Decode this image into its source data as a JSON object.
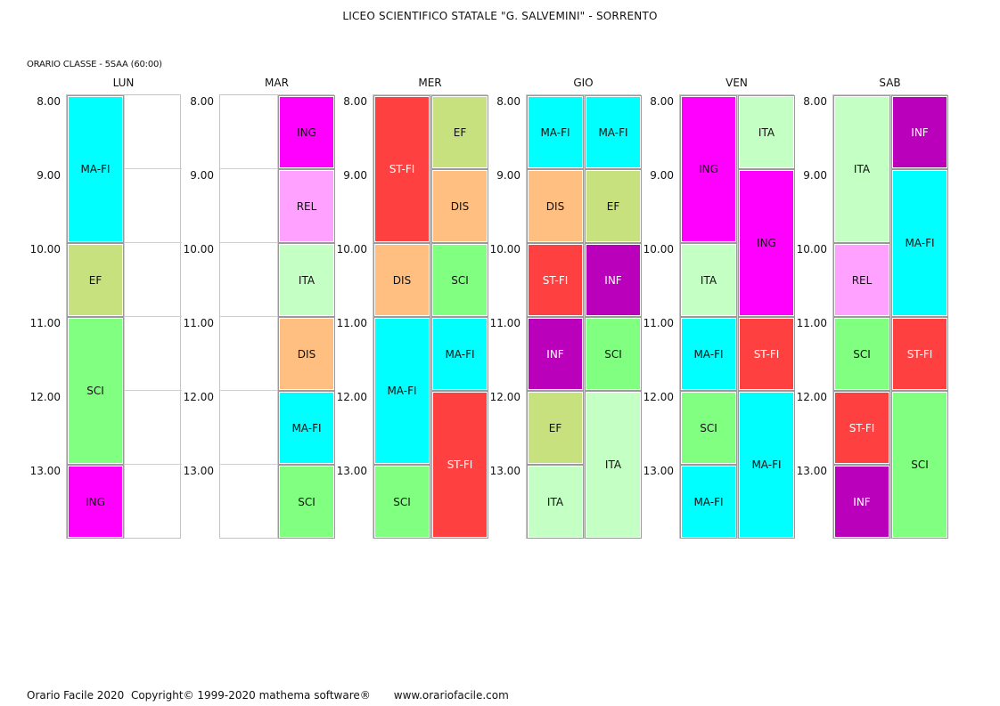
{
  "header": {
    "school": "LICEO SCIENTIFICO STATALE \"G. SALVEMINI\" - SORRENTO",
    "class_label": "ORARIO CLASSE  -  5SAA  (60:00)"
  },
  "times": [
    "8.00",
    "9.00",
    "10.00",
    "11.00",
    "12.00",
    "13.00"
  ],
  "subject_colors": {
    "MA-FI": {
      "bg": "#00ffff",
      "fg": "#111111"
    },
    "ING": {
      "bg": "#ff00ff",
      "fg": "#111111"
    },
    "EF": {
      "bg": "#c6e17e",
      "fg": "#111111"
    },
    "SCI": {
      "bg": "#80ff80",
      "fg": "#111111"
    },
    "REL": {
      "bg": "#ffa2ff",
      "fg": "#111111"
    },
    "ITA": {
      "bg": "#c4ffc4",
      "fg": "#111111"
    },
    "DIS": {
      "bg": "#ffbf80",
      "fg": "#111111"
    },
    "ST-FI": {
      "bg": "#ff4040",
      "fg": "#ffffff"
    },
    "INF": {
      "bg": "#bb00bb",
      "fg": "#ffffff"
    }
  },
  "days": [
    {
      "name": "LUN",
      "blocks": [
        {
          "subject": "MA-FI",
          "col": 0,
          "start": 0,
          "span": 2
        },
        {
          "subject": "EF",
          "col": 0,
          "start": 2,
          "span": 1
        },
        {
          "subject": "SCI",
          "col": 0,
          "start": 3,
          "span": 2
        },
        {
          "subject": "ING",
          "col": 0,
          "start": 5,
          "span": 1
        }
      ]
    },
    {
      "name": "MAR",
      "blocks": [
        {
          "subject": "ING",
          "col": 1,
          "start": 0,
          "span": 1
        },
        {
          "subject": "REL",
          "col": 1,
          "start": 1,
          "span": 1
        },
        {
          "subject": "ITA",
          "col": 1,
          "start": 2,
          "span": 1
        },
        {
          "subject": "DIS",
          "col": 1,
          "start": 3,
          "span": 1
        },
        {
          "subject": "MA-FI",
          "col": 1,
          "start": 4,
          "span": 1
        },
        {
          "subject": "SCI",
          "col": 1,
          "start": 5,
          "span": 1
        }
      ]
    },
    {
      "name": "MER",
      "blocks": [
        {
          "subject": "ST-FI",
          "col": 0,
          "start": 0,
          "span": 2
        },
        {
          "subject": "EF",
          "col": 1,
          "start": 0,
          "span": 1
        },
        {
          "subject": "DIS",
          "col": 1,
          "start": 1,
          "span": 1
        },
        {
          "subject": "DIS",
          "col": 0,
          "start": 2,
          "span": 1
        },
        {
          "subject": "SCI",
          "col": 1,
          "start": 2,
          "span": 1
        },
        {
          "subject": "MA-FI",
          "col": 0,
          "start": 3,
          "span": 2
        },
        {
          "subject": "MA-FI",
          "col": 1,
          "start": 3,
          "span": 1
        },
        {
          "subject": "ST-FI",
          "col": 1,
          "start": 4,
          "span": 2
        },
        {
          "subject": "SCI",
          "col": 0,
          "start": 5,
          "span": 1
        }
      ]
    },
    {
      "name": "GIO",
      "blocks": [
        {
          "subject": "MA-FI",
          "col": 0,
          "start": 0,
          "span": 1
        },
        {
          "subject": "MA-FI",
          "col": 1,
          "start": 0,
          "span": 1
        },
        {
          "subject": "DIS",
          "col": 0,
          "start": 1,
          "span": 1
        },
        {
          "subject": "EF",
          "col": 1,
          "start": 1,
          "span": 1
        },
        {
          "subject": "ST-FI",
          "col": 0,
          "start": 2,
          "span": 1
        },
        {
          "subject": "INF",
          "col": 1,
          "start": 2,
          "span": 1
        },
        {
          "subject": "INF",
          "col": 0,
          "start": 3,
          "span": 1
        },
        {
          "subject": "SCI",
          "col": 1,
          "start": 3,
          "span": 1
        },
        {
          "subject": "EF",
          "col": 0,
          "start": 4,
          "span": 1
        },
        {
          "subject": "ITA",
          "col": 1,
          "start": 4,
          "span": 2
        },
        {
          "subject": "ITA",
          "col": 0,
          "start": 5,
          "span": 1
        }
      ]
    },
    {
      "name": "VEN",
      "blocks": [
        {
          "subject": "ING",
          "col": 0,
          "start": 0,
          "span": 2
        },
        {
          "subject": "ITA",
          "col": 1,
          "start": 0,
          "span": 1
        },
        {
          "subject": "ING",
          "col": 1,
          "start": 1,
          "span": 2
        },
        {
          "subject": "ITA",
          "col": 0,
          "start": 2,
          "span": 1
        },
        {
          "subject": "MA-FI",
          "col": 0,
          "start": 3,
          "span": 1
        },
        {
          "subject": "ST-FI",
          "col": 1,
          "start": 3,
          "span": 1
        },
        {
          "subject": "SCI",
          "col": 0,
          "start": 4,
          "span": 1
        },
        {
          "subject": "MA-FI",
          "col": 1,
          "start": 4,
          "span": 2
        },
        {
          "subject": "MA-FI",
          "col": 0,
          "start": 5,
          "span": 1
        }
      ]
    },
    {
      "name": "SAB",
      "blocks": [
        {
          "subject": "ITA",
          "col": 0,
          "start": 0,
          "span": 2
        },
        {
          "subject": "INF",
          "col": 1,
          "start": 0,
          "span": 1
        },
        {
          "subject": "MA-FI",
          "col": 1,
          "start": 1,
          "span": 2
        },
        {
          "subject": "REL",
          "col": 0,
          "start": 2,
          "span": 1
        },
        {
          "subject": "SCI",
          "col": 0,
          "start": 3,
          "span": 1
        },
        {
          "subject": "ST-FI",
          "col": 1,
          "start": 3,
          "span": 1
        },
        {
          "subject": "ST-FI",
          "col": 0,
          "start": 4,
          "span": 1
        },
        {
          "subject": "SCI",
          "col": 1,
          "start": 4,
          "span": 2
        },
        {
          "subject": "INF",
          "col": 0,
          "start": 5,
          "span": 1
        }
      ]
    }
  ],
  "footer": {
    "copyright": "Orario Facile 2020  Copyright© 1999-2020 mathema software®",
    "website": "www.orariofacile.com"
  }
}
